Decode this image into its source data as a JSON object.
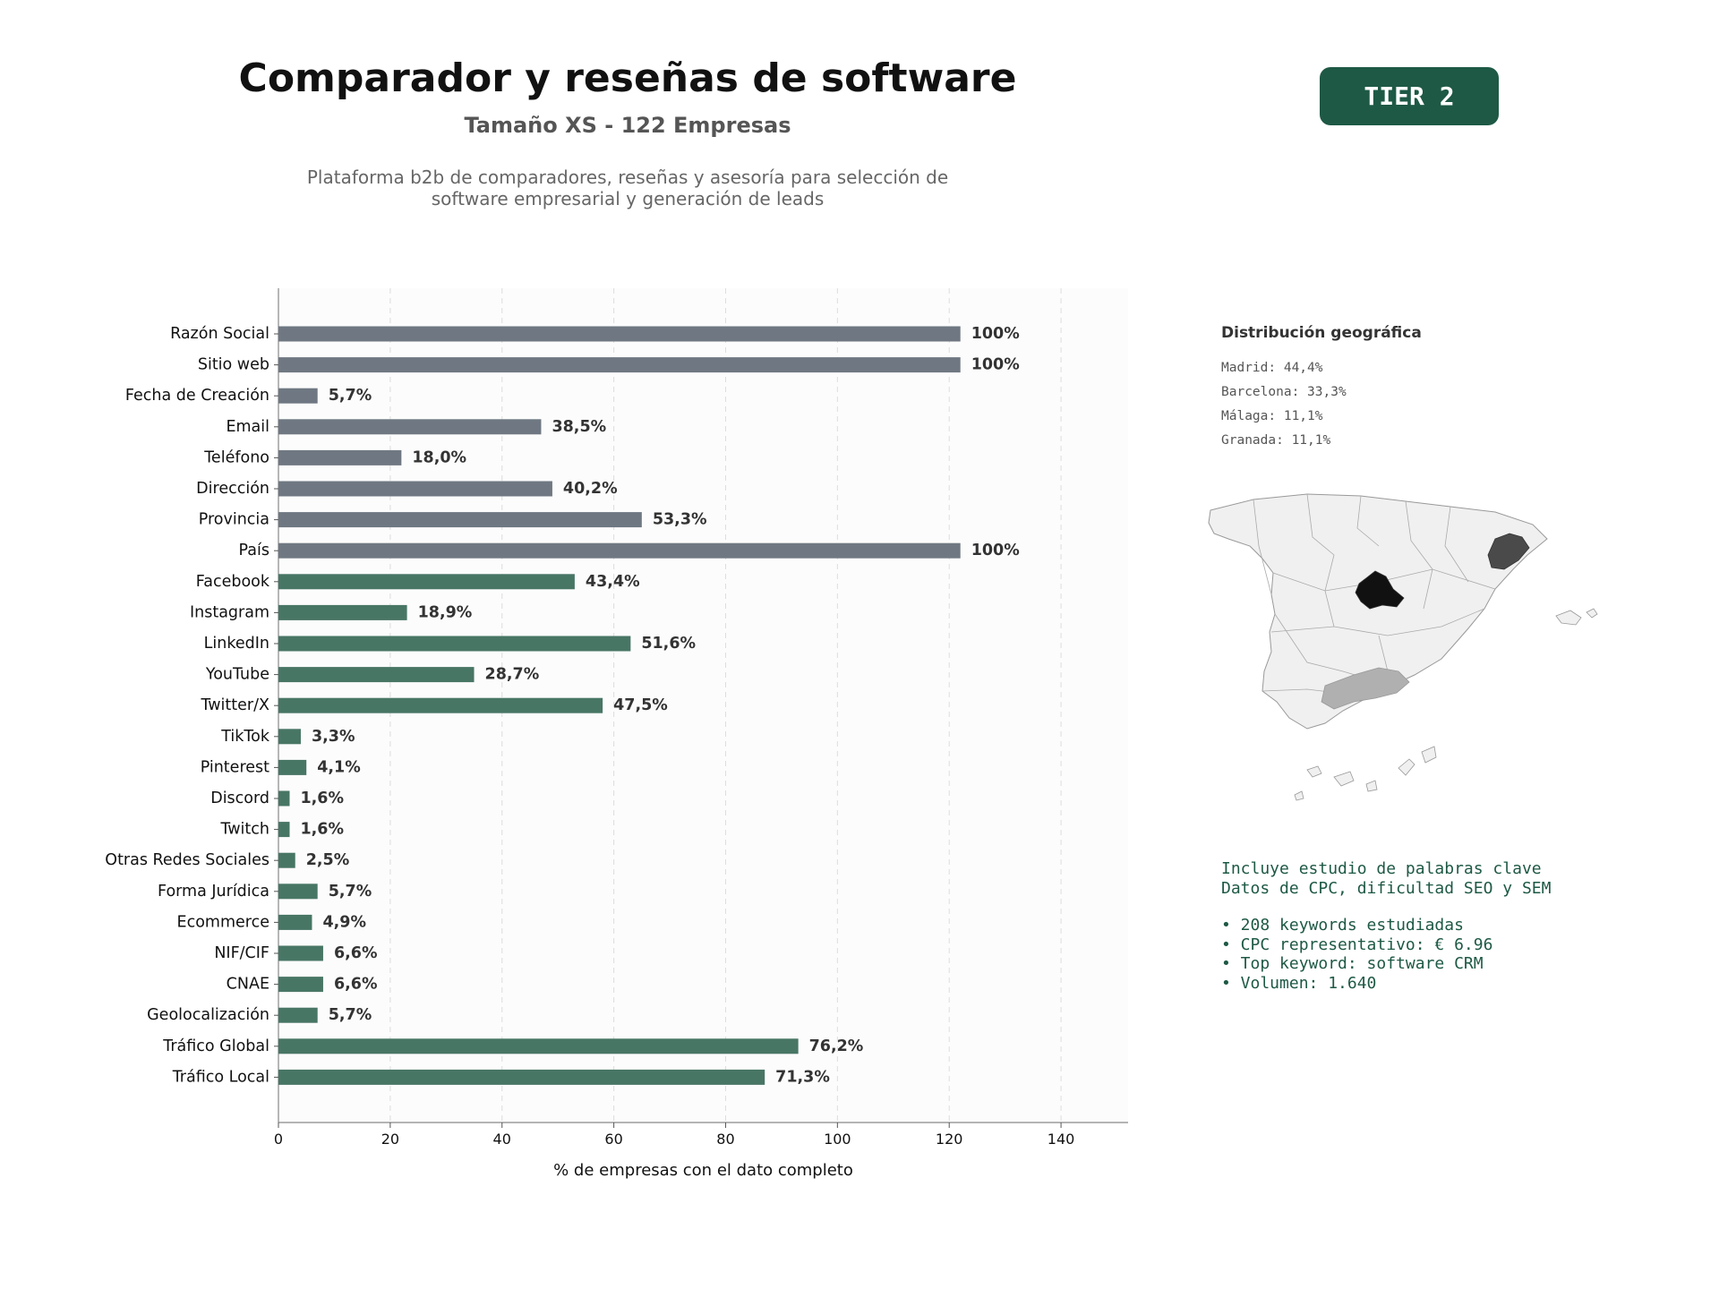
{
  "header": {
    "title": "Comparador y reseñas de software",
    "subtitle": "Tamaño XS - 122 Empresas",
    "description_line1": "Plataforma b2b de comparadores, reseñas y asesoría para selección de",
    "description_line2": "software empresarial y generación de leads",
    "tier": "TIER 2"
  },
  "chart_data": {
    "type": "bar",
    "orientation": "horizontal",
    "xlabel": "% de empresas con el dato completo",
    "ylabel": "",
    "xlim": [
      0,
      152
    ],
    "xticks": [
      0,
      20,
      40,
      60,
      80,
      100,
      120,
      140
    ],
    "grid": "vertical dashed",
    "categories": [
      "Razón Social",
      "Sitio web",
      "Fecha de Creación",
      "Email",
      "Teléfono",
      "Dirección",
      "Provincia",
      "País",
      "Facebook",
      "Instagram",
      "LinkedIn",
      "YouTube",
      "Twitter/X",
      "TikTok",
      "Pinterest",
      "Discord",
      "Twitch",
      "Otras Redes Sociales",
      "Forma Jurídica",
      "Ecommerce",
      "NIF/CIF",
      "CNAE",
      "Geolocalización",
      "Tráfico Global",
      "Tráfico Local"
    ],
    "values": [
      122,
      122,
      7,
      47,
      22,
      49,
      65,
      122,
      53,
      23,
      63,
      35,
      58,
      4,
      5,
      2,
      2,
      3,
      7,
      6,
      8,
      8,
      7,
      93,
      87
    ],
    "labels": [
      "100%",
      "100%",
      "5,7%",
      "38,5%",
      "18,0%",
      "40,2%",
      "53,3%",
      "100%",
      "43,4%",
      "18,9%",
      "51,6%",
      "28,7%",
      "47,5%",
      "3,3%",
      "4,1%",
      "1,6%",
      "1,6%",
      "2,5%",
      "5,7%",
      "4,9%",
      "6,6%",
      "6,6%",
      "5,7%",
      "76,2%",
      "71,3%"
    ],
    "groups": [
      "base",
      "base",
      "base",
      "base",
      "base",
      "base",
      "base",
      "base",
      "social",
      "social",
      "social",
      "social",
      "social",
      "social",
      "social",
      "social",
      "social",
      "social",
      "social",
      "social",
      "social",
      "social",
      "social",
      "social",
      "social"
    ],
    "colors": {
      "base": "#6f7882",
      "social": "#487665"
    }
  },
  "geo": {
    "title": "Distribución geográfica",
    "items": [
      "Madrid: 44,4%",
      "Barcelona: 33,3%",
      "Málaga: 11,1%",
      "Granada: 11,1%"
    ],
    "colors": {
      "madrid": "#111111",
      "barcelona": "#4a4a4a",
      "andalucia": "#b0b0b0",
      "other": "#f0f0f0",
      "border": "#999999"
    }
  },
  "keywords": {
    "line1": "Incluye estudio de palabras clave",
    "line2": "Datos de CPC, dificultad SEO y SEM",
    "bullets": [
      "• 208 keywords estudiadas",
      "• CPC representativo: € 6.96",
      "• Top keyword: software CRM",
      "• Volumen: 1.640"
    ]
  }
}
